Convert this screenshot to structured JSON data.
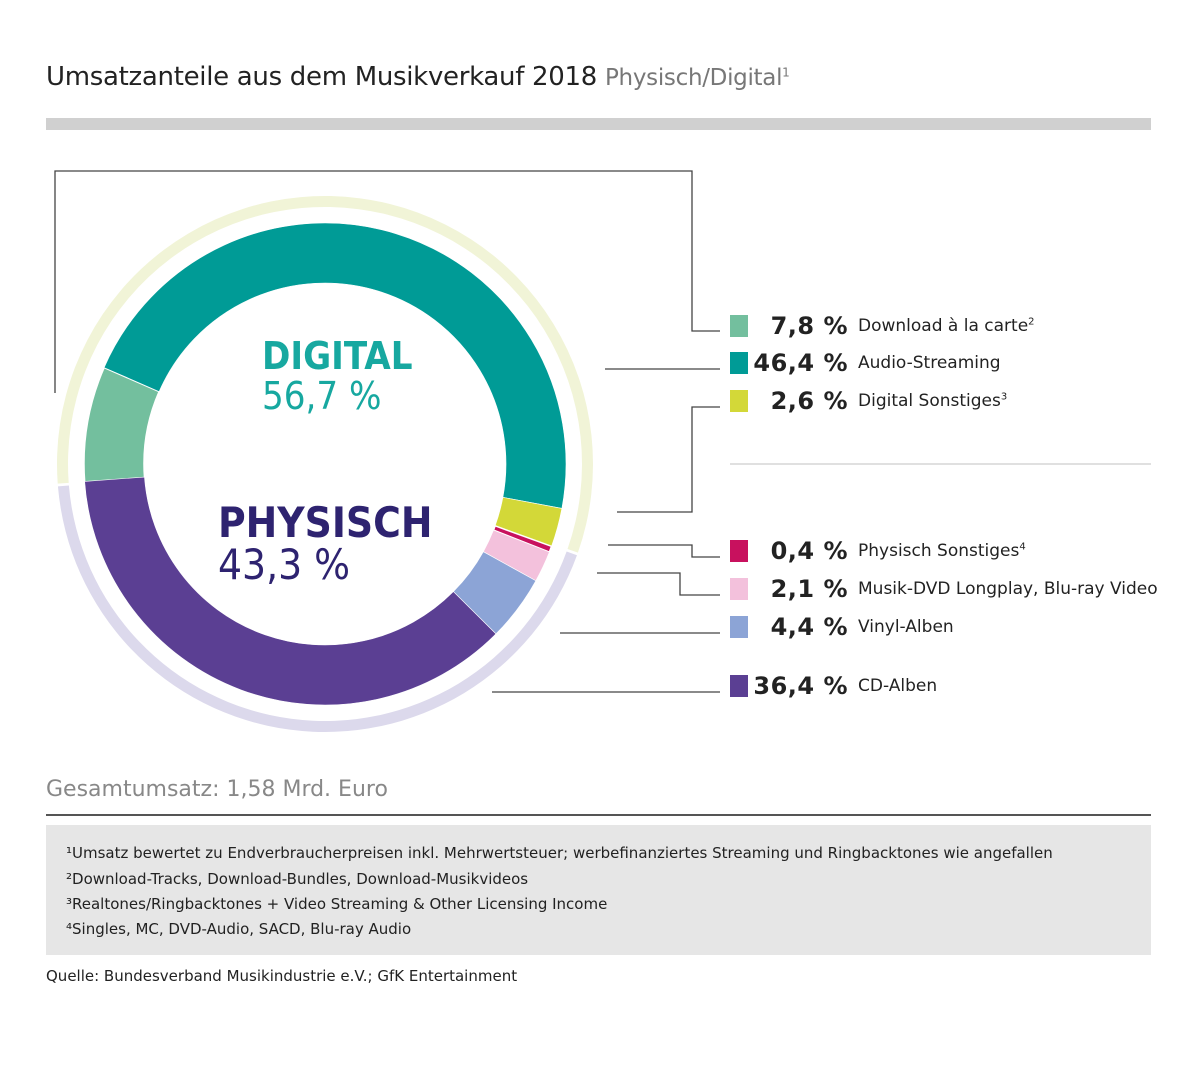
{
  "title": {
    "main": "Umsatzanteile aus dem Musikverkauf 2018",
    "sub": "Physisch/Digital",
    "sub_sup": "1"
  },
  "chart_data": {
    "type": "pie",
    "variant": "donut",
    "groups": [
      {
        "name": "DIGITAL",
        "value_label": "56,7 %",
        "value": 56.7,
        "color": "#17a8a0",
        "ring_color": "#f1f4d7"
      },
      {
        "name": "PHYSISCH",
        "value_label": "43,3 %",
        "value": 43.3,
        "color": "#2e2370",
        "ring_color": "#dcd9ec"
      }
    ],
    "slices": [
      {
        "group": "DIGITAL",
        "label": "Download à la carte",
        "sup": "2",
        "value": 7.8,
        "value_label": "7,8 %",
        "color": "#73bf9e"
      },
      {
        "group": "DIGITAL",
        "label": "Audio-Streaming",
        "sup": "",
        "value": 46.4,
        "value_label": "46,4 %",
        "color": "#009b96"
      },
      {
        "group": "DIGITAL",
        "label": "Digital Sonstiges",
        "sup": "3",
        "value": 2.6,
        "value_label": "2,6 %",
        "color": "#d3d838"
      },
      {
        "group": "PHYSISCH",
        "label": "Physisch Sonstiges",
        "sup": "4",
        "value": 0.4,
        "value_label": "0,4 %",
        "color": "#c8115e"
      },
      {
        "group": "PHYSISCH",
        "label": "Musik-DVD Longplay, Blu-ray Video",
        "sup": "",
        "value": 2.1,
        "value_label": "2,1 %",
        "color": "#f3c1dc"
      },
      {
        "group": "PHYSISCH",
        "label": "Vinyl-Alben",
        "sup": "",
        "value": 4.4,
        "value_label": "4,4 %",
        "color": "#8ca4d6"
      },
      {
        "group": "PHYSISCH",
        "label": "CD-Alben",
        "sup": "",
        "value": 36.4,
        "value_label": "36,4 %",
        "color": "#5b3f93"
      }
    ],
    "legend_placement": "right"
  },
  "total": "Gesamtumsatz: 1,58 Mrd. Euro",
  "footnotes": [
    "¹Umsatz bewertet zu Endverbraucherpreisen inkl. Mehrwertsteuer; werbefinanziertes Streaming und Ringbacktones wie angefallen",
    "²Download-Tracks, Download-Bundles, Download-Musikvideos",
    "³Realtones/Ringbacktones + Video Streaming & Other Licensing Income",
    "⁴Singles, MC, DVD-Audio, SACD, Blu-ray Audio"
  ],
  "source": "Quelle: Bundesverband Musikindustrie e.V.; GfK Entertainment"
}
